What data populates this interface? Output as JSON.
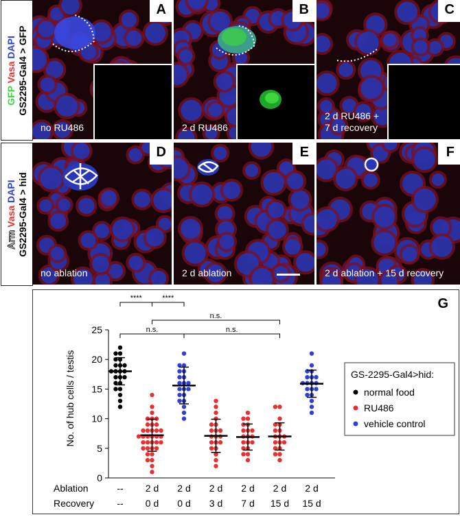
{
  "row1_side": {
    "line1": [
      "GFP",
      " ",
      "Vasa",
      " ",
      "DAPI"
    ],
    "line2": "GS2295-Gal4 > GFP"
  },
  "row2_side": {
    "line1": [
      "Arm",
      " ",
      "Vasa",
      " ",
      "DAPI"
    ],
    "line2": "GS2295-Gal4 > hid"
  },
  "colors": {
    "green": "#3dd63d",
    "red": "#e83030",
    "blue": "#2f3fd8",
    "black": "#000000"
  },
  "panels": [
    {
      "letter": "A",
      "caption": "no RU486"
    },
    {
      "letter": "B",
      "caption": "2 d RU486"
    },
    {
      "letter": "C",
      "caption_line1": "2 d RU486 +",
      "caption_line2": "7 d recovery"
    },
    {
      "letter": "D",
      "caption": "no ablation"
    },
    {
      "letter": "E",
      "caption": "2 d ablation"
    },
    {
      "letter": "F",
      "caption": "2 d ablation + 15 d recovery"
    }
  ],
  "chart": {
    "letter": "G",
    "legend_title": "GS-2295-Gal4>hid:",
    "legend_items": [
      "normal food",
      "RU486",
      "vehicle control"
    ],
    "row_labels": {
      "ablation": "Ablation",
      "recovery": "Recovery"
    },
    "significance": [
      "****",
      "****",
      "n.s.",
      "n.s.",
      "n.s."
    ]
  },
  "chart_data": {
    "type": "scatter",
    "ylabel": "No. of hub cells / testis",
    "ylim": [
      0,
      25
    ],
    "yticks": [
      "0",
      "5",
      "10",
      "15",
      "20",
      "25"
    ],
    "groups": [
      {
        "ablation": "--",
        "recovery": "--",
        "series": "normal food",
        "color": "#000000",
        "mean": 18.0,
        "sd": 2.3,
        "values": [
          22,
          21,
          21,
          20,
          20,
          19,
          19,
          19,
          18,
          18,
          18,
          18,
          17,
          17,
          17,
          16,
          16,
          15,
          15,
          14,
          13,
          12
        ]
      },
      {
        "ablation": "2 d",
        "recovery": "0 d",
        "series": "RU486",
        "color": "#e83030",
        "mean": 7.2,
        "sd": 2.7,
        "values": [
          14,
          12,
          11,
          10,
          10,
          10,
          9,
          9,
          9,
          8,
          8,
          8,
          8,
          8,
          7,
          7,
          7,
          7,
          7,
          7,
          6,
          6,
          6,
          6,
          6,
          5,
          5,
          5,
          5,
          4,
          4,
          3,
          3,
          2,
          1
        ]
      },
      {
        "ablation": "2 d",
        "recovery": "0 d",
        "series": "vehicle control",
        "color": "#2f3fd8",
        "mean": 15.6,
        "sd": 3.1,
        "values": [
          21,
          19,
          19,
          18,
          18,
          17,
          17,
          16,
          16,
          16,
          15,
          15,
          15,
          14,
          14,
          13,
          13,
          12,
          11,
          10
        ]
      },
      {
        "ablation": "2 d",
        "recovery": "3 d",
        "series": "RU486",
        "color": "#e83030",
        "mean": 7.1,
        "sd": 2.8,
        "values": [
          13,
          12,
          11,
          10,
          9,
          9,
          8,
          8,
          8,
          7,
          7,
          7,
          6,
          6,
          6,
          5,
          5,
          4,
          3,
          2
        ]
      },
      {
        "ablation": "2 d",
        "recovery": "7 d",
        "series": "RU486",
        "color": "#e83030",
        "mean": 6.9,
        "sd": 2.2,
        "values": [
          11,
          10,
          10,
          9,
          9,
          8,
          8,
          8,
          7,
          7,
          7,
          6,
          6,
          6,
          5,
          5,
          4,
          4,
          3
        ]
      },
      {
        "ablation": "2 d",
        "recovery": "15 d",
        "series": "RU486",
        "color": "#e83030",
        "mean": 7.0,
        "sd": 2.3,
        "values": [
          12,
          12,
          10,
          9,
          9,
          8,
          8,
          7,
          7,
          7,
          6,
          6,
          6,
          5,
          5,
          4,
          4,
          3
        ]
      },
      {
        "ablation": "2 d",
        "recovery": "15 d",
        "series": "vehicle control",
        "color": "#2f3fd8",
        "mean": 15.9,
        "sd": 2.3,
        "values": [
          21,
          19,
          18,
          18,
          17,
          17,
          17,
          16,
          16,
          16,
          16,
          15,
          15,
          15,
          14,
          14,
          13,
          12,
          11
        ]
      }
    ]
  }
}
